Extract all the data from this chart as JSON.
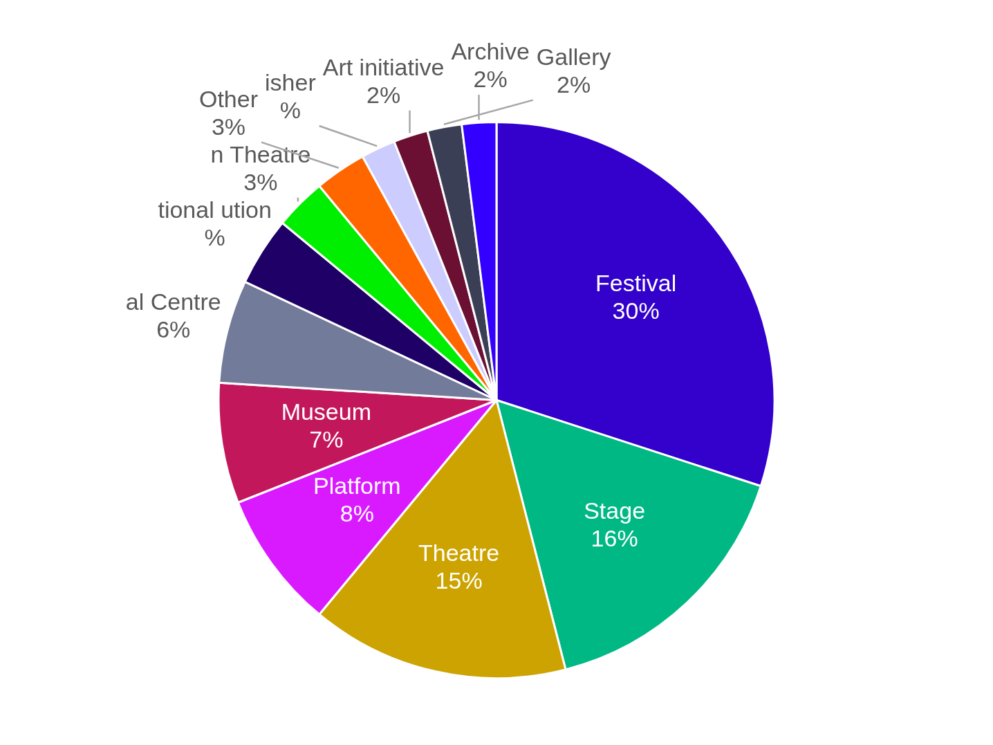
{
  "chart_data": {
    "type": "pie",
    "categories": [
      "Festival",
      "Stage",
      "Theatre",
      "Platform",
      "Museum",
      "al Centre",
      "tional ution",
      "n Theatre",
      "Other",
      "isher",
      "Art initiative",
      "Gallery",
      "Archive"
    ],
    "values": [
      30,
      16,
      15,
      8,
      7,
      6,
      4,
      3,
      3,
      2,
      2,
      2,
      2
    ],
    "value_labels": [
      "30%",
      "16%",
      "15%",
      "8%",
      "7%",
      "6%",
      "%",
      "3%",
      "3%",
      "%",
      "2%",
      "2%",
      "2%"
    ],
    "colors": [
      "#3300cc",
      "#00b884",
      "#cca300",
      "#d91aff",
      "#c2185b",
      "#737b9b",
      "#1f0066",
      "#00ee00",
      "#ff6600",
      "#ccccff",
      "#6b0f33",
      "#3b3f55",
      "#3300ff"
    ]
  }
}
